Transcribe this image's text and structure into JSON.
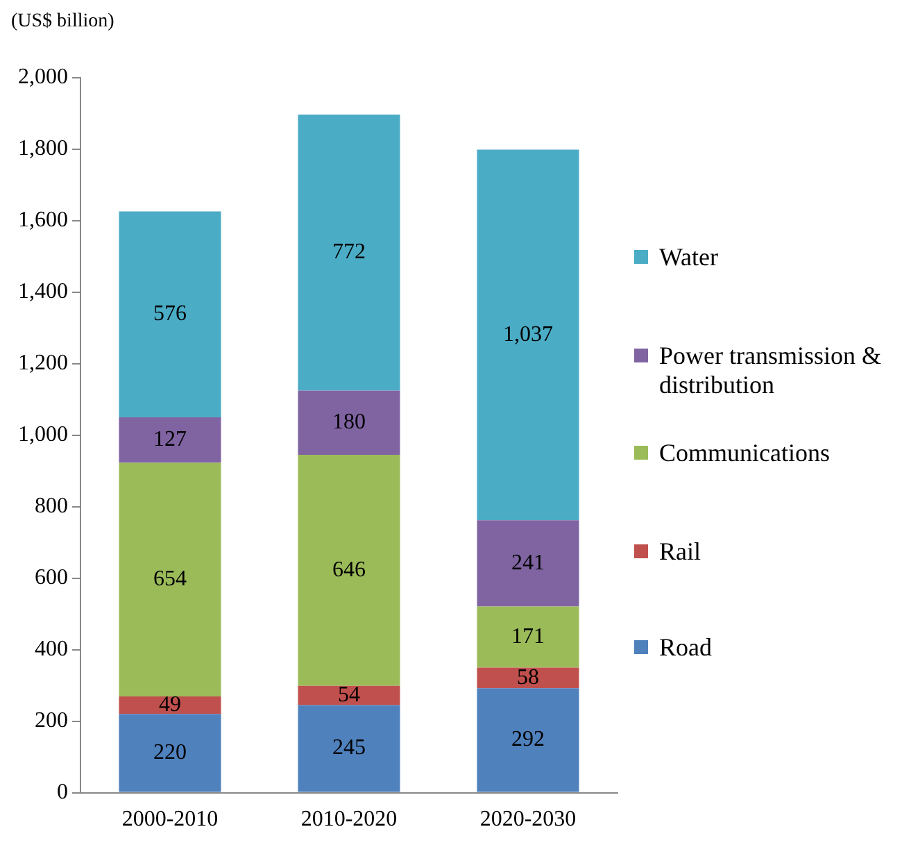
{
  "chart_data": {
    "type": "bar",
    "ylabel": "(US$ billion)",
    "categories": [
      "2000-2010",
      "2010-2020",
      "2020-2030"
    ],
    "stacked": true,
    "ylim": [
      0,
      2000
    ],
    "yticks": [
      0,
      200,
      400,
      600,
      800,
      {
        "value": 1000,
        "label": "1,000"
      },
      {
        "value": 1200,
        "label": "1,200"
      },
      {
        "value": 1400,
        "label": "1,400"
      },
      {
        "value": 1600,
        "label": "1,600"
      },
      {
        "value": 1800,
        "label": "1,800"
      },
      {
        "value": 2000,
        "label": "2,000"
      }
    ],
    "grid": false,
    "legend": "right",
    "series": [
      {
        "name": "Road",
        "color": "#4f81bd",
        "values": [
          220,
          245,
          292
        ],
        "value_labels": [
          "220",
          "245",
          "292"
        ]
      },
      {
        "name": "Rail",
        "color": "#c0504d",
        "values": [
          49,
          54,
          58
        ],
        "value_labels": [
          "49",
          "54",
          "58"
        ]
      },
      {
        "name": "Communications",
        "color": "#9bbb59",
        "values": [
          654,
          646,
          171
        ],
        "value_labels": [
          "654",
          "646",
          "171"
        ]
      },
      {
        "name": "Power transmission & distribution",
        "color": "#8064a2",
        "values": [
          127,
          180,
          241
        ],
        "value_labels": [
          "127",
          "180",
          "241"
        ]
      },
      {
        "name": "Water",
        "color": "#4bacc6",
        "values": [
          576,
          772,
          1037
        ],
        "value_labels": [
          "576",
          "772",
          "1,037"
        ]
      }
    ]
  }
}
